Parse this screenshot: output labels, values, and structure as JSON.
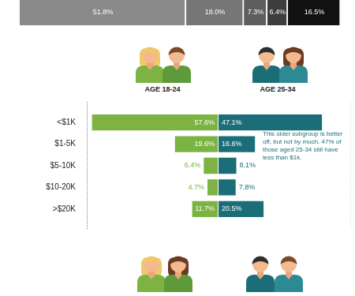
{
  "chart_data": [
    {
      "type": "bar",
      "orientation": "horizontal",
      "stacked": true,
      "categories": [
        null
      ],
      "series": [
        {
          "color": "#8a8a8a",
          "values": [
            51.8
          ],
          "value_labels": [
            "51.8%"
          ]
        },
        {
          "color": "#777777",
          "values": [
            18.0
          ],
          "value_labels": [
            "18.0%"
          ]
        },
        {
          "color": "#5e5e5e",
          "values": [
            7.3
          ],
          "value_labels": [
            "7.3%"
          ]
        },
        {
          "color": "#3d3d3d",
          "values": [
            6.4
          ],
          "value_labels": [
            "6.4%"
          ]
        },
        {
          "color": "#111111",
          "values": [
            16.5
          ],
          "value_labels": [
            "16.5%"
          ]
        }
      ],
      "xlim": [
        0,
        100
      ],
      "data_labels": true,
      "tick_labels": false
    },
    {
      "type": "butterfly",
      "orientation": "horizontal",
      "categories": [
        "<$1K",
        "$1-5K",
        "$5-10K",
        "$10-20K",
        ">$20K"
      ],
      "series": [
        {
          "name": "AGE 18-24",
          "color": "#7cb342",
          "values": [
            57.6,
            19.6,
            6.4,
            4.7,
            11.7
          ],
          "value_labels": [
            "57.6%",
            "19.6%",
            "6.4%",
            "4.7%",
            "11.7%"
          ]
        },
        {
          "name": "AGE 25-34",
          "color": "#1b6e77",
          "values": [
            47.1,
            16.6,
            8.1,
            7.8,
            20.5
          ],
          "value_labels": [
            "47.1%",
            "16.6%",
            "8.1%",
            "7.8%",
            "20.5%"
          ]
        }
      ],
      "xlim": [
        0,
        60
      ],
      "data_labels": true,
      "tick_labels": "y",
      "annotation": "This older subgroup is better off, but not by much. 47% of those aged 25-34 still have less than $1k."
    }
  ]
}
